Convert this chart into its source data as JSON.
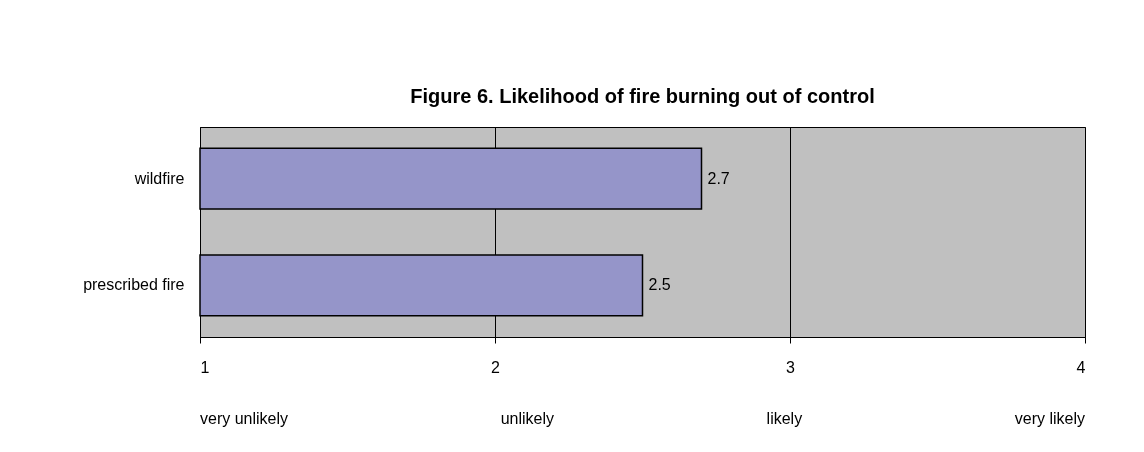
{
  "chart_data": {
    "type": "bar",
    "orientation": "horizontal",
    "title": "Figure 6. Likelihood of fire burning out of control",
    "categories": [
      "wildfire",
      "prescribed fire"
    ],
    "values": [
      2.7,
      2.5
    ],
    "color": "#9595c9",
    "data_labels": true,
    "xlim": [
      1,
      4
    ],
    "xticks": [
      1,
      2,
      3,
      4
    ],
    "annotations": [
      "very unlikely",
      "unlikely",
      "likely",
      "very likely"
    ],
    "grid": "x"
  }
}
